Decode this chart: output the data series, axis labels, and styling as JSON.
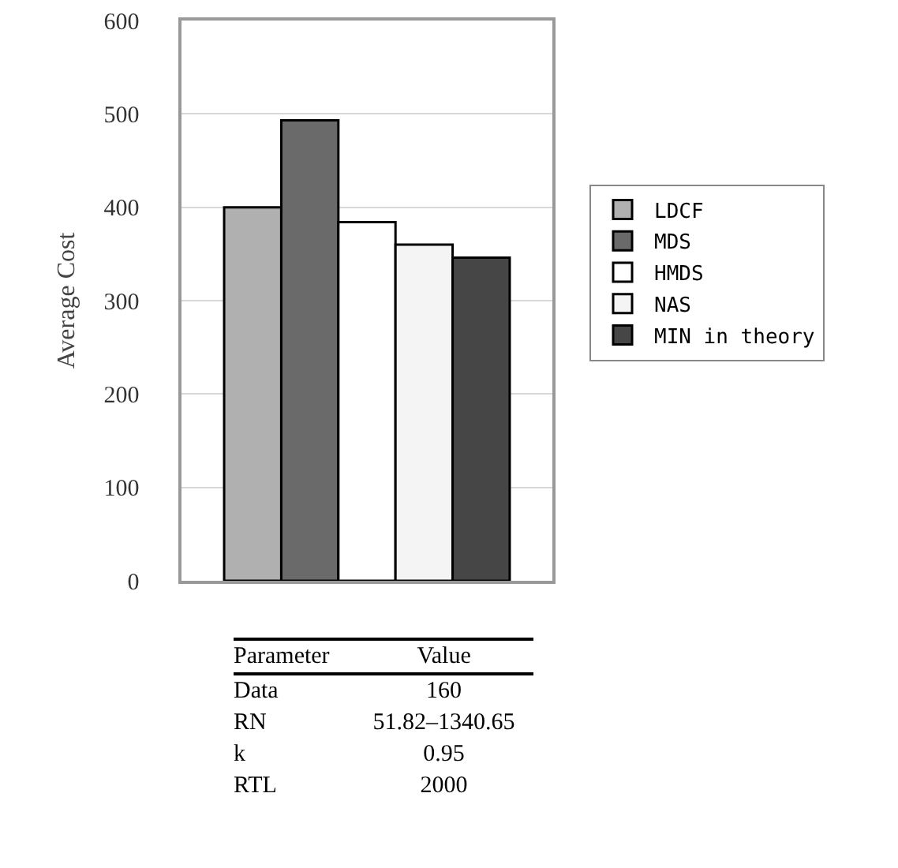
{
  "chart_data": {
    "type": "bar",
    "ylabel": "Average Cost",
    "categories": [
      null
    ],
    "series": [
      {
        "name": "LDCF",
        "color": "#b0b0b0",
        "values": [
          400
        ]
      },
      {
        "name": "MDS",
        "color": "#6a6a6a",
        "values": [
          493
        ]
      },
      {
        "name": "HMDS",
        "color": "#ffffff",
        "values": [
          384
        ]
      },
      {
        "name": "NAS",
        "color": "#f4f4f4",
        "values": [
          360
        ]
      },
      {
        "name": "MIN in theory",
        "color": "#464646",
        "values": [
          346
        ]
      }
    ],
    "ylim": [
      0,
      600
    ],
    "yticks": [
      0,
      100,
      200,
      300,
      400,
      500,
      600
    ],
    "grid": "y",
    "legend": "right",
    "annotations": [
      "Parameter",
      "Value",
      "Data",
      "160",
      "RN",
      "51.82–1340.65",
      "k",
      "0.95",
      "RTL",
      "2000"
    ]
  }
}
